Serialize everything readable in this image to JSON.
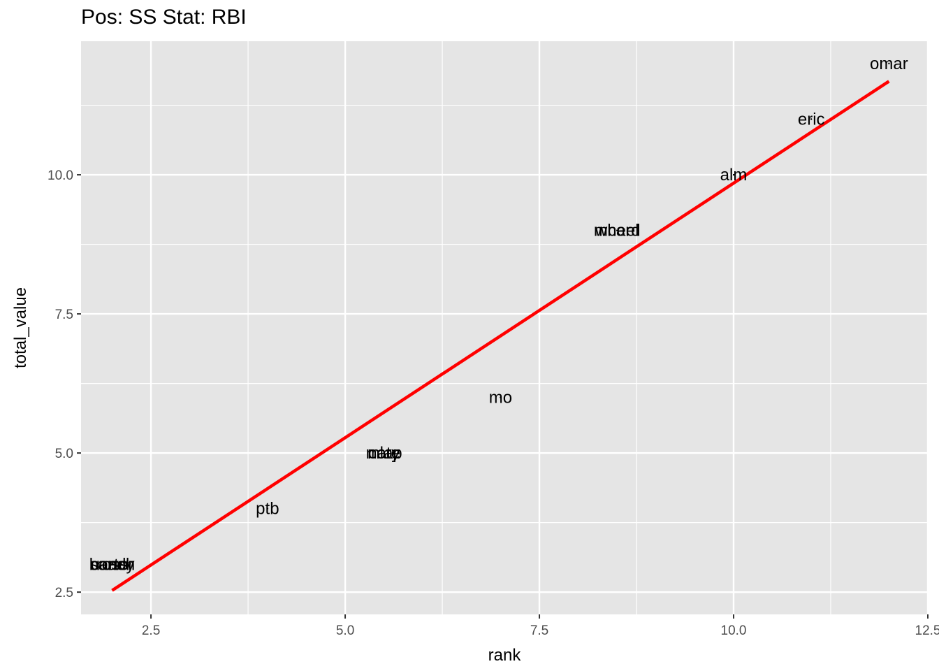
{
  "chart_data": {
    "type": "scatter",
    "title": "Pos: SS Stat: RBI",
    "xlabel": "rank",
    "ylabel": "total_value",
    "xlim": [
      1.6,
      12.5
    ],
    "ylim": [
      2.1,
      12.4
    ],
    "x_ticks": [
      2.5,
      5.0,
      7.5,
      10.0,
      12.5
    ],
    "x_tick_labels": [
      "2.5",
      "5.0",
      "7.5",
      "10.0",
      "12.5"
    ],
    "y_ticks": [
      2.5,
      5.0,
      7.5,
      10.0
    ],
    "y_tick_labels": [
      "2.5",
      "5.0",
      "7.5",
      "10.0"
    ],
    "grid": true,
    "points": [
      {
        "label": "omar",
        "x": 12,
        "y": 12
      },
      {
        "label": "eric",
        "x": 11,
        "y": 11
      },
      {
        "label": "alm",
        "x": 10,
        "y": 10
      },
      {
        "label": "mo",
        "x": 7,
        "y": 6
      },
      {
        "label": "ptb",
        "x": 4,
        "y": 4
      },
      {
        "label": "mcard",
        "x": 8.5,
        "y": 9
      },
      {
        "label": "wheel",
        "x": 8.5,
        "y": 9
      },
      {
        "label": "cory",
        "x": 5.5,
        "y": 5
      },
      {
        "label": "mlap",
        "x": 5.5,
        "y": 5
      },
      {
        "label": "nate",
        "x": 5.5,
        "y": 5
      },
      {
        "label": "beach",
        "x": 2,
        "y": 3
      },
      {
        "label": "sandy",
        "x": 2,
        "y": 3
      },
      {
        "label": "carter",
        "x": 2,
        "y": 3
      },
      {
        "label": "ross",
        "x": 2,
        "y": 3
      }
    ],
    "fit_line": {
      "color": "#ff0000",
      "x": [
        2,
        12
      ],
      "y": [
        2.53,
        11.68
      ]
    },
    "colors": {
      "panel": "#e5e5e5",
      "grid": "#ffffff",
      "points": "#000000"
    }
  }
}
